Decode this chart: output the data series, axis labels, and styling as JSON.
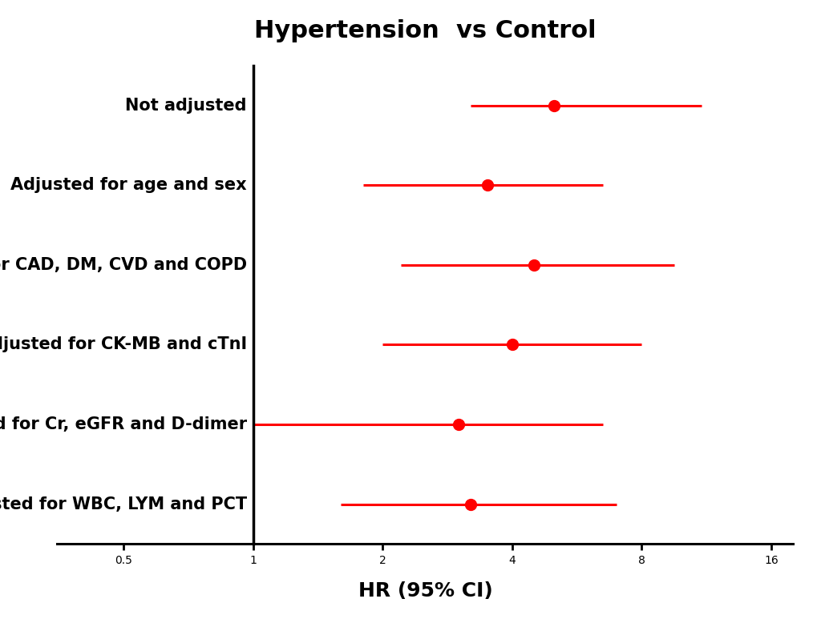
{
  "title": "Hypertension  vs Control",
  "xlabel": "HR (95% CI)",
  "labels": [
    "Not adjusted",
    "Adjusted for age and sex",
    "Adjusted for CAD, DM, CVD and COPD",
    "Adjusted for CK-MB and cTnI",
    "Adjusted for Cr, eGFR and D-dimer",
    "Adjusted for WBC, LYM and PCT"
  ],
  "hr": [
    5.0,
    3.5,
    4.5,
    4.0,
    3.0,
    3.2
  ],
  "ci_lo": [
    3.2,
    1.8,
    2.2,
    2.0,
    1.0,
    1.6
  ],
  "ci_hi": [
    11.0,
    6.5,
    9.5,
    8.0,
    6.5,
    7.0
  ],
  "dot_color": "#FF0000",
  "line_color": "#FF0000",
  "vline_color": "#000000",
  "xscale_ticks": [
    0.5,
    1,
    2,
    4,
    8,
    16
  ],
  "xlim_lo": 0.35,
  "xlim_hi": 18.0,
  "title_fontsize": 22,
  "label_fontsize": 15,
  "xlabel_fontsize": 18,
  "tick_fontsize": 15
}
